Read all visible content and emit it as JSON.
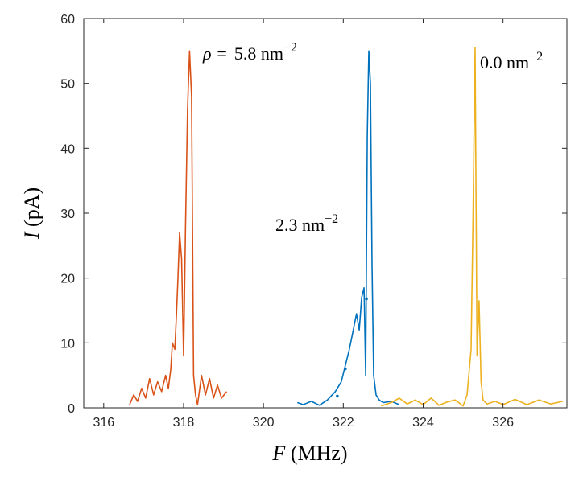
{
  "chart_data": {
    "type": "line",
    "title": "",
    "xlabel": {
      "var": "F",
      "unit": " (MHz)"
    },
    "ylabel": {
      "var": "I",
      "unit": " (pA)"
    },
    "xlim": [
      315.5,
      327.6
    ],
    "ylim": [
      0,
      60
    ],
    "xticks": [
      316,
      318,
      320,
      322,
      324,
      326
    ],
    "yticks": [
      0,
      10,
      20,
      30,
      40,
      50,
      60
    ],
    "grid": false,
    "series": [
      {
        "name": "5.8",
        "color": "#d95319",
        "x": [
          316.65,
          316.75,
          316.85,
          316.95,
          317.05,
          317.15,
          317.25,
          317.35,
          317.45,
          317.55,
          317.62,
          317.68,
          317.72,
          317.78,
          317.82,
          317.86,
          317.9,
          317.95,
          318.0,
          318.05,
          318.1,
          318.15,
          318.2,
          318.25,
          318.3,
          318.35,
          318.45,
          318.55,
          318.65,
          318.75,
          318.85,
          318.95,
          319.08
        ],
        "y": [
          0.5,
          2.0,
          1.0,
          3.0,
          1.5,
          4.5,
          2.0,
          4.0,
          2.5,
          5.0,
          3.0,
          6.0,
          10.0,
          9.0,
          14.0,
          20.0,
          27.0,
          23.0,
          8.0,
          28.0,
          46.0,
          55.0,
          48.0,
          5.0,
          2.0,
          0.5,
          5.0,
          2.0,
          4.5,
          1.5,
          3.5,
          1.5,
          2.5
        ]
      },
      {
        "name": "2.3",
        "color": "#0072bd",
        "x": [
          320.85,
          321.0,
          321.2,
          321.4,
          321.6,
          321.8,
          321.95,
          322.05,
          322.15,
          322.25,
          322.33,
          322.4,
          322.46,
          322.52,
          322.56,
          322.6,
          322.64,
          322.68,
          322.72,
          322.76,
          322.82,
          322.9,
          323.0,
          323.2,
          323.4
        ],
        "y": [
          0.8,
          0.5,
          1.0,
          0.4,
          1.2,
          2.5,
          4.0,
          6.5,
          9.0,
          12.0,
          14.5,
          12.0,
          17.0,
          18.5,
          5.0,
          42.0,
          55.0,
          50.0,
          22.0,
          5.0,
          2.0,
          1.2,
          0.8,
          1.0,
          0.5
        ],
        "markers": [
          [
            321.85,
            1.8
          ],
          [
            322.05,
            6.0
          ],
          [
            322.58,
            16.8
          ]
        ]
      },
      {
        "name": "0.0",
        "color": "#edb120",
        "x": [
          322.95,
          323.2,
          323.4,
          323.6,
          323.8,
          324.0,
          324.2,
          324.4,
          324.6,
          324.8,
          325.0,
          325.1,
          325.2,
          325.25,
          325.3,
          325.35,
          325.4,
          325.45,
          325.5,
          325.6,
          325.8,
          326.0,
          326.3,
          326.6,
          326.9,
          327.2,
          327.5
        ],
        "y": [
          0.3,
          0.8,
          1.5,
          0.6,
          1.2,
          0.5,
          1.5,
          0.4,
          0.9,
          1.2,
          0.3,
          2.0,
          9.0,
          30.0,
          55.5,
          8.0,
          16.5,
          4.0,
          1.2,
          0.6,
          1.0,
          0.5,
          1.3,
          0.5,
          1.2,
          0.6,
          1.0
        ]
      }
    ],
    "annotations": [
      {
        "prefix": "ρ =",
        "value": "5.8 nm",
        "sup": "−2"
      },
      {
        "value": "2.3 nm",
        "sup": "−2"
      },
      {
        "value": "0.0 nm",
        "sup": "−2"
      }
    ]
  }
}
